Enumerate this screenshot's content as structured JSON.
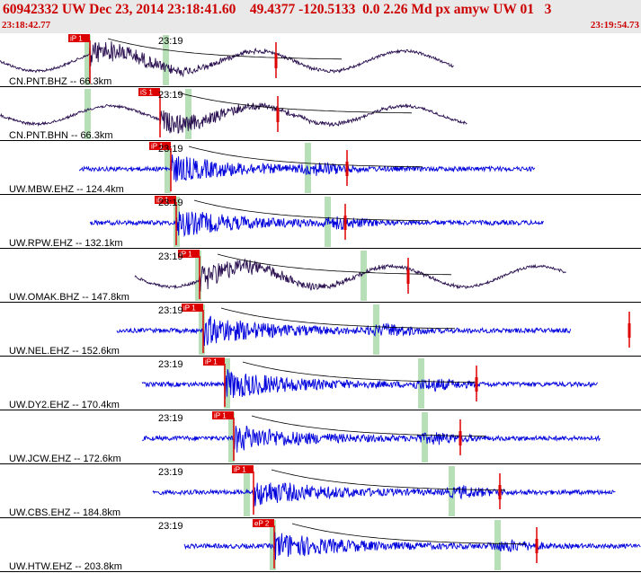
{
  "header": {
    "title": "60942332 UW Dec 23, 2014 23:18:41.60    49.4377 -120.5133  0.0 2.26 Md px amyw UW 01   3",
    "start_time": "23:18:42.77",
    "end_time": "23:19:54.73"
  },
  "colors": {
    "header_bg": "#e9e9e9",
    "header_text": "#cc0000",
    "trace_short_period": "#0000dd",
    "trace_broadband": "#2a1050",
    "pick": "#dd0000",
    "window": "#b8e0b8",
    "separator": "#000000",
    "moveout_curve": "#000000"
  },
  "traces": [
    {
      "label": "CN.PNT.BHZ -- 66.3km",
      "time_label": "23:19",
      "pick_label": "iP 1",
      "type": "long",
      "amp": 0.78
    },
    {
      "label": "CN.PNT.BHN -- 66.3km",
      "time_label": "23:19",
      "pick_label": "iS 1",
      "type": "long",
      "amp": 0.7
    },
    {
      "label": "UW.MBW.EHZ -- 124.4km",
      "time_label": "23:19",
      "pick_label": "iP 1",
      "type": "short",
      "amp": 0.55
    },
    {
      "label": "UW.RPW.EHZ -- 132.1km",
      "time_label": "23:19",
      "pick_label": "iP 1",
      "type": "short",
      "amp": 0.55
    },
    {
      "label": "UW.OMAK.BHZ -- 147.8km",
      "time_label": "23:19",
      "pick_label": "iP 1",
      "type": "long",
      "amp": 0.8
    },
    {
      "label": "UW.NEL.EHZ -- 152.6km",
      "time_label": "23:19",
      "pick_label": "iP 1",
      "type": "short",
      "amp": 0.6
    },
    {
      "label": "UW.DY2.EHZ -- 170.4km",
      "time_label": "23:19",
      "pick_label": "iP 1",
      "type": "short",
      "amp": 0.6
    },
    {
      "label": "UW.JCW.EHZ -- 172.6km",
      "time_label": "23:19",
      "pick_label": "iP 1",
      "type": "short",
      "amp": 0.55
    },
    {
      "label": "UW.CBS.EHZ -- 184.8km",
      "time_label": "23:19",
      "pick_label": "iP 1",
      "type": "short",
      "amp": 0.55
    },
    {
      "label": "UW.HTW.EHZ -- 203.8km",
      "time_label": "23:19",
      "pick_label": "eP 2",
      "type": "short",
      "amp": 0.55
    }
  ]
}
